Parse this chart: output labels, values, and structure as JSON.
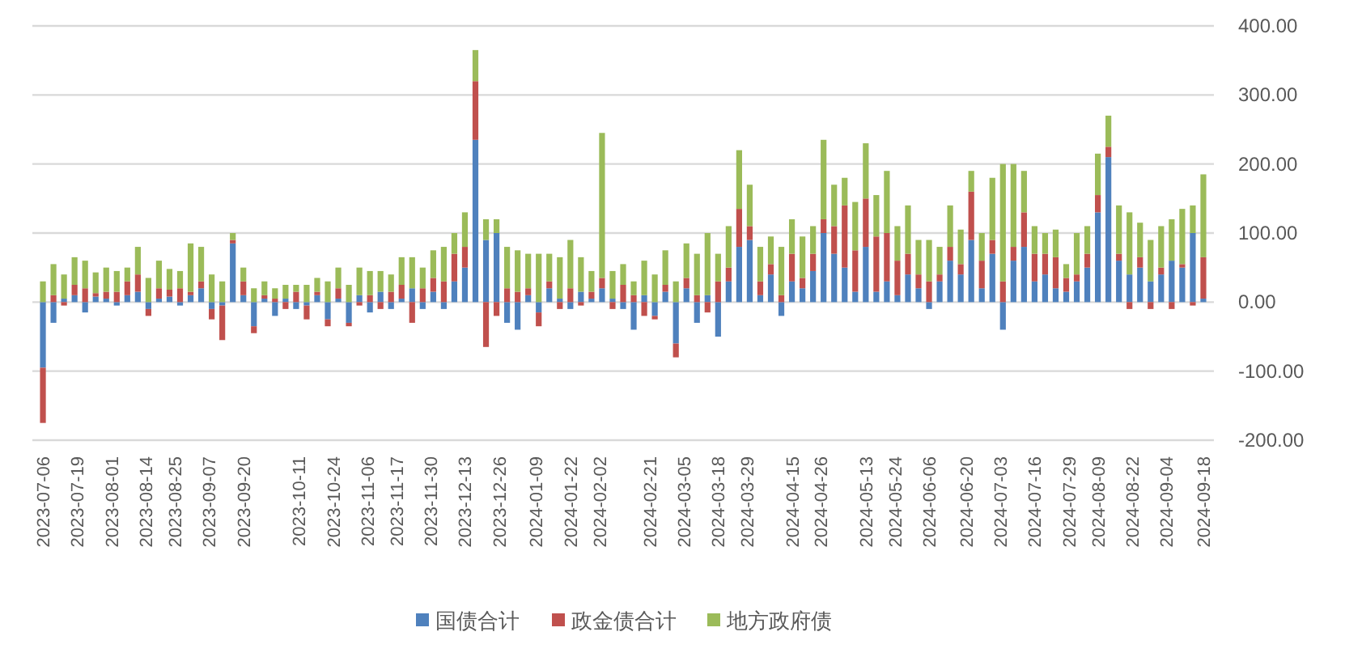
{
  "chart_data": {
    "type": "bar",
    "stacked": true,
    "grid": "y",
    "legend": "bottom",
    "x": [
      "2023-07-06",
      "2023-07-10",
      "2023-07-14",
      "2023-07-18",
      "2023-07-22",
      "2023-07-26",
      "2023-07-30",
      "2023-08-03",
      "2023-08-07",
      "2023-08-11",
      "2023-08-15",
      "2023-08-19",
      "2023-08-23",
      "2023-08-27",
      "2023-08-31",
      "2023-09-04",
      "2023-09-08",
      "2023-09-12",
      "2023-09-16",
      "2023-09-20",
      "2023-09-24",
      "2023-09-28",
      "2023-10-02",
      "2023-10-06",
      "2023-10-10",
      "2023-10-14",
      "2023-10-18",
      "2023-10-22",
      "2023-10-26",
      "2023-10-30",
      "2023-11-03",
      "2023-11-07",
      "2023-11-11",
      "2023-11-15",
      "2023-11-19",
      "2023-11-23",
      "2023-11-27",
      "2023-12-01",
      "2023-12-05",
      "2023-12-09",
      "2023-12-13",
      "2023-12-17",
      "2023-12-21",
      "2023-12-25",
      "2023-12-29",
      "2024-01-02",
      "2024-01-06",
      "2024-01-10",
      "2024-01-14",
      "2024-01-18",
      "2024-01-22",
      "2024-01-26",
      "2024-01-30",
      "2024-02-03",
      "2024-02-07",
      "2024-02-11",
      "2024-02-15",
      "2024-02-19",
      "2024-02-23",
      "2024-02-27",
      "2024-03-02",
      "2024-03-06",
      "2024-03-10",
      "2024-03-14",
      "2024-03-18",
      "2024-03-22",
      "2024-03-26",
      "2024-03-30",
      "2024-04-03",
      "2024-04-07",
      "2024-04-11",
      "2024-04-15",
      "2024-04-19",
      "2024-04-23",
      "2024-04-27",
      "2024-05-01",
      "2024-05-05",
      "2024-05-09",
      "2024-05-13",
      "2024-05-17",
      "2024-05-21",
      "2024-05-25",
      "2024-05-29",
      "2024-06-02",
      "2024-06-06",
      "2024-06-10",
      "2024-06-14",
      "2024-06-18",
      "2024-06-22",
      "2024-06-26",
      "2024-06-30",
      "2024-07-04",
      "2024-07-08",
      "2024-07-12",
      "2024-07-16",
      "2024-07-20",
      "2024-07-24",
      "2024-07-28",
      "2024-08-01",
      "2024-08-05",
      "2024-08-09",
      "2024-08-13",
      "2024-08-17",
      "2024-08-21",
      "2024-08-25",
      "2024-08-29",
      "2024-09-02",
      "2024-09-06",
      "2024-09-10",
      "2024-09-14",
      "2024-09-18"
    ],
    "series": [
      {
        "name": "国债合计",
        "color": "#4f81bd",
        "values": [
          -95,
          -30,
          5,
          10,
          -15,
          8,
          5,
          -5,
          10,
          15,
          -10,
          5,
          8,
          -5,
          10,
          20,
          -10,
          -5,
          85,
          10,
          -35,
          5,
          -20,
          5,
          -10,
          -5,
          10,
          -25,
          5,
          -30,
          10,
          -15,
          15,
          -10,
          5,
          20,
          -10,
          15,
          -10,
          30,
          50,
          235,
          90,
          100,
          -30,
          -40,
          10,
          -15,
          20,
          5,
          -10,
          15,
          5,
          20,
          5,
          -10,
          -40,
          10,
          -20,
          15,
          -60,
          20,
          -30,
          10,
          -50,
          30,
          80,
          90,
          10,
          40,
          -20,
          30,
          20,
          45,
          100,
          70,
          50,
          15,
          80,
          15,
          30,
          10,
          40,
          20,
          -10,
          30,
          60,
          40,
          90,
          20,
          70,
          -40,
          60,
          80,
          30,
          40,
          20,
          15,
          30,
          50,
          130,
          210,
          60,
          40,
          50,
          30,
          40,
          60,
          50,
          100,
          5
        ]
      },
      {
        "name": "政金债合计",
        "color": "#c0504d",
        "values": [
          -80,
          10,
          -5,
          15,
          20,
          5,
          10,
          15,
          20,
          25,
          -10,
          15,
          10,
          20,
          5,
          10,
          -15,
          -50,
          5,
          20,
          -10,
          5,
          5,
          -10,
          15,
          -20,
          5,
          -10,
          15,
          -5,
          -5,
          10,
          -10,
          15,
          20,
          -30,
          20,
          20,
          30,
          40,
          30,
          85,
          -65,
          -20,
          20,
          15,
          10,
          -20,
          10,
          -10,
          20,
          -5,
          10,
          15,
          -10,
          25,
          10,
          -20,
          -5,
          10,
          -20,
          15,
          10,
          -15,
          30,
          20,
          55,
          20,
          20,
          15,
          10,
          40,
          15,
          25,
          20,
          40,
          90,
          60,
          70,
          80,
          70,
          50,
          30,
          20,
          30,
          10,
          20,
          15,
          70,
          40,
          20,
          30,
          20,
          50,
          40,
          30,
          45,
          20,
          10,
          20,
          25,
          15,
          10,
          -10,
          15,
          -10,
          10,
          -10,
          5,
          -5,
          60
        ]
      },
      {
        "name": "地方政府债",
        "color": "#9bbb59",
        "values": [
          30,
          45,
          35,
          40,
          40,
          30,
          35,
          30,
          20,
          40,
          35,
          40,
          30,
          25,
          70,
          50,
          40,
          30,
          10,
          20,
          20,
          20,
          15,
          20,
          10,
          25,
          20,
          30,
          30,
          25,
          40,
          35,
          30,
          25,
          40,
          45,
          30,
          40,
          50,
          30,
          50,
          45,
          30,
          20,
          60,
          60,
          50,
          70,
          40,
          60,
          70,
          50,
          30,
          210,
          40,
          30,
          20,
          50,
          40,
          50,
          30,
          50,
          60,
          90,
          40,
          60,
          85,
          60,
          50,
          40,
          70,
          50,
          60,
          40,
          115,
          60,
          40,
          70,
          80,
          60,
          90,
          50,
          70,
          50,
          60,
          40,
          60,
          50,
          30,
          40,
          90,
          170,
          120,
          60,
          40,
          30,
          40,
          20,
          60,
          40,
          60,
          45,
          70,
          90,
          50,
          60,
          60,
          60,
          80,
          40,
          120
        ]
      }
    ],
    "xlim": [
      "2023-07-02",
      "2024-09-22"
    ],
    "xticks": [
      "2023-07-06",
      "2023-07-19",
      "2023-08-01",
      "2023-08-14",
      "2023-08-25",
      "2023-09-07",
      "2023-09-20",
      "2023-10-11",
      "2023-10-24",
      "2023-11-06",
      "2023-11-17",
      "2023-11-30",
      "2023-12-13",
      "2023-12-26",
      "2024-01-09",
      "2024-01-22",
      "2024-02-02",
      "2024-02-21",
      "2024-03-05",
      "2024-03-18",
      "2024-03-29",
      "2024-04-15",
      "2024-04-26",
      "2024-05-13",
      "2024-05-24",
      "2024-06-06",
      "2024-06-20",
      "2024-07-03",
      "2024-07-16",
      "2024-07-29",
      "2024-08-09",
      "2024-08-22",
      "2024-09-04",
      "2024-09-18"
    ],
    "ylim": [
      -200,
      400
    ],
    "yticks": [
      {
        "value": 400,
        "label": "400.00"
      },
      {
        "value": 300,
        "label": "300.00"
      },
      {
        "value": 200,
        "label": "200.00"
      },
      {
        "value": 100,
        "label": "100.00"
      },
      {
        "value": 0,
        "label": "0.00"
      },
      {
        "value": -100,
        "label": "-100.00"
      },
      {
        "value": -200,
        "label": "-200.00"
      }
    ]
  }
}
